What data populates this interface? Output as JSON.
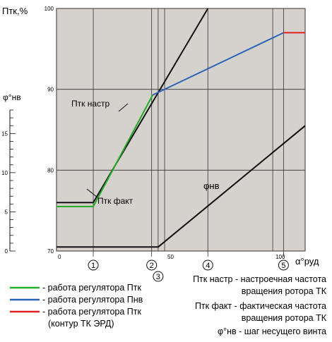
{
  "chart_data": {
    "type": "line",
    "y_axis_label": "Птк,%",
    "phi_axis_label": "φ°нв",
    "x_axis_label": "α°руд",
    "y_ticks": [
      "70",
      "80",
      "90",
      "100"
    ],
    "x_ticks": [
      "0",
      "50",
      "100"
    ],
    "phi_ticks": [
      "0",
      "5",
      "10",
      "15"
    ],
    "markers": [
      "1",
      "2",
      "3",
      "4",
      "5"
    ],
    "curve_labels": {
      "ptk_nastr": "Птк настр",
      "ptk_fakt": "Птк факт",
      "phi_nv": "φнв"
    },
    "series": [
      {
        "name": "Птк настр",
        "color": "#111111",
        "x": [
          0,
          17,
          70
        ],
        "y": [
          76,
          76,
          100
        ]
      },
      {
        "name": "Птк факт",
        "color": "#22aa22",
        "x": [
          0,
          17,
          44.5
        ],
        "y": [
          75.5,
          75.5,
          89.3
        ]
      },
      {
        "name": "Пнв",
        "color": "#2b63b8",
        "x": [
          44.5,
          105
        ],
        "y": [
          89.3,
          97
        ]
      },
      {
        "name": "Птк (контур ТК ЭРД)",
        "color": "#e02020",
        "x": [
          105,
          115
        ],
        "y": [
          97,
          97
        ]
      },
      {
        "name": "φнв",
        "color": "#111111",
        "x": [
          0,
          47,
          115
        ],
        "y": [
          70.5,
          70.5,
          85.5
        ]
      }
    ],
    "xlim": [
      0,
      115
    ],
    "ylim": [
      70,
      100
    ]
  },
  "legend": [
    {
      "color": "#22aa22",
      "text": "- работа регулятора Птк"
    },
    {
      "color": "#2b63b8",
      "text": "- работа регулятора Пнв"
    },
    {
      "color": "#e02020",
      "text": "- работа регулятора Птк"
    },
    {
      "color": "",
      "text": "(контур ТК ЭРД)"
    }
  ],
  "notes": [
    "Птк настр - настроечная частота",
    "вращения ротора ТК",
    "Птк факт - фактическая частота",
    "вращения ротора ТК",
    "φ°нв - шаг несущего винта"
  ],
  "colors": {
    "plot_bg": "#d5d1cc",
    "grid": "#333333"
  }
}
